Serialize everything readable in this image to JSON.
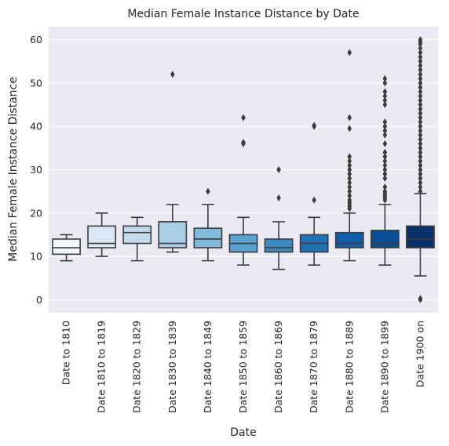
{
  "chart_data": {
    "type": "box",
    "title": "Median Female Instance Distance by Date",
    "xlabel": "Date",
    "ylabel": "Median Female Instance Distance",
    "ylim": [
      -3,
      63
    ],
    "yticks": [
      0,
      10,
      20,
      30,
      40,
      50,
      60
    ],
    "grid": true,
    "legend": "none",
    "colors": [
      "#f2f7fd",
      "#dae8f5",
      "#c5daee",
      "#a8cde4",
      "#82badb",
      "#5aa2cf",
      "#3b8bc2",
      "#2171b5",
      "#115fab",
      "#0a4f94",
      "#08306b"
    ],
    "edge_color": "#3c3c3c",
    "categories": [
      "Date to 1810",
      "Date 1810 to 1819",
      "Date 1820 to 1829",
      "Date 1830 to 1839",
      "Date 1840 to 1849",
      "Date 1850 to 1859",
      "Date 1860 to 1869",
      "Date 1870 to 1879",
      "Date 1880 to 1889",
      "Date 1890 to 1899",
      "Date 1900 on"
    ],
    "boxes": [
      {
        "whisker_low": 9,
        "q1": 10.5,
        "median": 12,
        "q3": 14,
        "whisker_high": 15,
        "outliers": []
      },
      {
        "whisker_low": 10,
        "q1": 12,
        "median": 13,
        "q3": 17,
        "whisker_high": 20,
        "outliers": []
      },
      {
        "whisker_low": 9,
        "q1": 13,
        "median": 15.5,
        "q3": 17,
        "whisker_high": 19,
        "outliers": []
      },
      {
        "whisker_low": 11,
        "q1": 12,
        "median": 13,
        "q3": 18,
        "whisker_high": 22,
        "outliers": [
          52
        ]
      },
      {
        "whisker_low": 9,
        "q1": 12,
        "median": 14,
        "q3": 16.5,
        "whisker_high": 22,
        "outliers": [
          25
        ]
      },
      {
        "whisker_low": 8,
        "q1": 11,
        "median": 13,
        "q3": 15,
        "whisker_high": 19,
        "outliers": [
          36,
          36.3,
          42
        ]
      },
      {
        "whisker_low": 7,
        "q1": 11,
        "median": 12,
        "q3": 14,
        "whisker_high": 18,
        "outliers": [
          23.5,
          30
        ]
      },
      {
        "whisker_low": 8,
        "q1": 11,
        "median": 13,
        "q3": 15,
        "whisker_high": 19,
        "outliers": [
          23,
          40,
          40.2
        ]
      },
      {
        "whisker_low": 9,
        "q1": 12,
        "median": 13,
        "q3": 15.5,
        "whisker_high": 20,
        "outliers": [
          21,
          21.5,
          22,
          22.5,
          23,
          24,
          25,
          26,
          27,
          28,
          29,
          30,
          31,
          32,
          33,
          39.5,
          42,
          57
        ]
      },
      {
        "whisker_low": 8,
        "q1": 12,
        "median": 13,
        "q3": 16,
        "whisker_high": 22,
        "outliers": [
          23,
          23.5,
          24,
          24.5,
          25,
          26,
          28,
          29,
          30,
          31,
          32,
          33,
          34,
          36,
          38,
          39,
          40,
          41,
          45,
          46,
          47,
          48,
          50,
          51
        ]
      },
      {
        "whisker_low": 5.5,
        "q1": 12,
        "median": 14,
        "q3": 17,
        "whisker_high": 24.5,
        "outliers": [
          0,
          0.3,
          25,
          26,
          27,
          28,
          29,
          30,
          31,
          32,
          33,
          34,
          35,
          36,
          37,
          38,
          39,
          40,
          41,
          42,
          43,
          44,
          45,
          46,
          47,
          48,
          49,
          50,
          51,
          52,
          53,
          54,
          55,
          56,
          57,
          58,
          59,
          59.5,
          60
        ]
      }
    ]
  }
}
